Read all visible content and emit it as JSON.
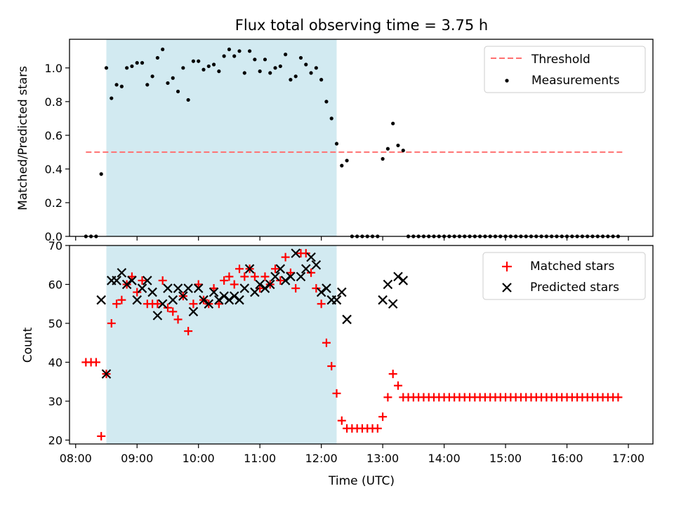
{
  "chart_data": [
    {
      "type": "scatter",
      "title": "Flux total observing time = 3.75 h",
      "xlabel": "",
      "ylabel": "Matched/Predicted stars",
      "xlim": [
        "07:54",
        "17:24"
      ],
      "ylim": [
        0,
        1.17
      ],
      "y_ticks": [
        "0.0",
        "0.2",
        "0.4",
        "0.6",
        "0.8",
        "1.0"
      ],
      "shaded_region": {
        "start": "08:30",
        "end": "12:15",
        "color": "#add8e6"
      },
      "legend_position": "top-right",
      "series": [
        {
          "name": "Threshold",
          "kind": "dashed-line",
          "color": "#ff7070",
          "x": [
            "08:10",
            "16:55"
          ],
          "values": [
            0.5,
            0.5
          ]
        },
        {
          "name": "Measurements",
          "kind": "dots",
          "color": "#000000",
          "x": [
            "08:10",
            "08:15",
            "08:20",
            "08:25",
            "08:30",
            "08:35",
            "08:40",
            "08:45",
            "08:50",
            "08:55",
            "09:00",
            "09:05",
            "09:10",
            "09:15",
            "09:20",
            "09:25",
            "09:30",
            "09:35",
            "09:40",
            "09:45",
            "09:50",
            "09:55",
            "10:00",
            "10:05",
            "10:10",
            "10:15",
            "10:20",
            "10:25",
            "10:30",
            "10:35",
            "10:40",
            "10:45",
            "10:50",
            "10:55",
            "11:00",
            "11:05",
            "11:10",
            "11:15",
            "11:20",
            "11:25",
            "11:30",
            "11:35",
            "11:40",
            "11:45",
            "11:50",
            "11:55",
            "12:00",
            "12:05",
            "12:10",
            "12:15",
            "12:20",
            "12:25",
            "12:30",
            "12:35",
            "12:40",
            "12:45",
            "12:50",
            "12:55",
            "13:00",
            "13:05",
            "13:10",
            "13:15",
            "13:20",
            "13:25",
            "13:30",
            "13:35",
            "13:40",
            "13:45",
            "13:50",
            "13:55",
            "14:00",
            "14:05",
            "14:10",
            "14:15",
            "14:20",
            "14:25",
            "14:30",
            "14:35",
            "14:40",
            "14:45",
            "14:50",
            "14:55",
            "15:00",
            "15:05",
            "15:10",
            "15:15",
            "15:20",
            "15:25",
            "15:30",
            "15:35",
            "15:40",
            "15:45",
            "15:50",
            "15:55",
            "16:00",
            "16:05",
            "16:10",
            "16:15",
            "16:20",
            "16:25",
            "16:30",
            "16:35",
            "16:40",
            "16:45",
            "16:50"
          ],
          "values": [
            0,
            0,
            0,
            0.37,
            1.0,
            0.82,
            0.9,
            0.89,
            1.0,
            1.01,
            1.03,
            1.03,
            0.9,
            0.95,
            1.06,
            1.11,
            0.91,
            0.94,
            0.86,
            1.0,
            0.81,
            1.04,
            1.04,
            0.99,
            1.01,
            1.02,
            0.98,
            1.07,
            1.11,
            1.07,
            1.1,
            0.97,
            1.1,
            1.05,
            0.98,
            1.05,
            0.97,
            1.0,
            1.01,
            1.08,
            0.93,
            0.95,
            1.06,
            1.02,
            0.97,
            1.0,
            0.93,
            0.8,
            0.7,
            0.55,
            0.42,
            0.45,
            0,
            0,
            0,
            0,
            0,
            0,
            0.46,
            0.52,
            0.67,
            0.54,
            0.51,
            0,
            0,
            0,
            0,
            0,
            0,
            0,
            0,
            0,
            0,
            0,
            0,
            0,
            0,
            0,
            0,
            0,
            0,
            0,
            0,
            0,
            0,
            0,
            0,
            0,
            0,
            0,
            0,
            0,
            0,
            0,
            0,
            0,
            0,
            0,
            0,
            0,
            0,
            0,
            0,
            0,
            0
          ]
        }
      ]
    },
    {
      "type": "scatter",
      "title": "",
      "xlabel": "Time (UTC)",
      "ylabel": "Count",
      "xlim": [
        "07:54",
        "17:24"
      ],
      "ylim": [
        19,
        70
      ],
      "y_ticks": [
        "20",
        "30",
        "40",
        "50",
        "60",
        "70"
      ],
      "x_ticks": [
        "08:00",
        "09:00",
        "10:00",
        "11:00",
        "12:00",
        "13:00",
        "14:00",
        "15:00",
        "16:00",
        "17:00"
      ],
      "shaded_region": {
        "start": "08:30",
        "end": "12:15",
        "color": "#add8e6"
      },
      "legend_position": "top-right",
      "series": [
        {
          "name": "Matched stars",
          "kind": "plus",
          "color": "#ff0000",
          "x": [
            "08:10",
            "08:15",
            "08:20",
            "08:25",
            "08:30",
            "08:35",
            "08:40",
            "08:45",
            "08:50",
            "08:55",
            "09:00",
            "09:05",
            "09:10",
            "09:15",
            "09:20",
            "09:25",
            "09:30",
            "09:35",
            "09:40",
            "09:45",
            "09:50",
            "09:55",
            "10:00",
            "10:05",
            "10:10",
            "10:15",
            "10:20",
            "10:25",
            "10:30",
            "10:35",
            "10:40",
            "10:45",
            "10:50",
            "10:55",
            "11:00",
            "11:05",
            "11:10",
            "11:15",
            "11:20",
            "11:25",
            "11:30",
            "11:35",
            "11:40",
            "11:45",
            "11:50",
            "11:55",
            "12:00",
            "12:05",
            "12:10",
            "12:15",
            "12:20",
            "12:25",
            "12:30",
            "12:35",
            "12:40",
            "12:45",
            "12:50",
            "12:55",
            "13:00",
            "13:05",
            "13:10",
            "13:15",
            "13:20",
            "13:25",
            "13:30",
            "13:35",
            "13:40",
            "13:45",
            "13:50",
            "13:55",
            "14:00",
            "14:05",
            "14:10",
            "14:15",
            "14:20",
            "14:25",
            "14:30",
            "14:35",
            "14:40",
            "14:45",
            "14:50",
            "14:55",
            "15:00",
            "15:05",
            "15:10",
            "15:15",
            "15:20",
            "15:25",
            "15:30",
            "15:35",
            "15:40",
            "15:45",
            "15:50",
            "15:55",
            "16:00",
            "16:05",
            "16:10",
            "16:15",
            "16:20",
            "16:25",
            "16:30",
            "16:35",
            "16:40",
            "16:45",
            "16:50"
          ],
          "values": [
            40,
            40,
            40,
            21,
            37,
            50,
            55,
            56,
            60,
            62,
            58,
            61,
            55,
            55,
            55,
            61,
            54,
            53,
            51,
            57,
            48,
            55,
            60,
            56,
            55,
            59,
            55,
            61,
            62,
            60,
            64,
            62,
            64,
            62,
            59,
            62,
            60,
            64,
            61,
            67,
            63,
            59,
            68,
            68,
            63,
            59,
            55,
            45,
            39,
            32,
            25,
            23,
            23,
            23,
            23,
            23,
            23,
            23,
            26,
            31,
            37,
            34,
            31,
            31,
            31,
            31,
            31,
            31,
            31,
            31,
            31,
            31,
            31,
            31,
            31,
            31,
            31,
            31,
            31,
            31,
            31,
            31,
            31,
            31,
            31,
            31,
            31,
            31,
            31,
            31,
            31,
            31,
            31,
            31,
            31,
            31,
            31,
            31,
            31,
            31,
            31,
            31,
            31,
            31,
            31
          ]
        },
        {
          "name": "Predicted stars",
          "kind": "cross",
          "color": "#000000",
          "x": [
            "08:25",
            "08:30",
            "08:35",
            "08:40",
            "08:45",
            "08:50",
            "08:55",
            "09:00",
            "09:05",
            "09:10",
            "09:15",
            "09:20",
            "09:25",
            "09:30",
            "09:35",
            "09:40",
            "09:45",
            "09:50",
            "09:55",
            "10:00",
            "10:05",
            "10:10",
            "10:15",
            "10:20",
            "10:25",
            "10:30",
            "10:35",
            "10:40",
            "10:45",
            "10:50",
            "10:55",
            "11:00",
            "11:05",
            "11:10",
            "11:15",
            "11:20",
            "11:25",
            "11:30",
            "11:35",
            "11:40",
            "11:45",
            "11:50",
            "11:55",
            "12:00",
            "12:05",
            "12:10",
            "12:15",
            "12:20",
            "12:25",
            "13:00",
            "13:05",
            "13:10",
            "13:15",
            "13:20"
          ],
          "values": [
            56,
            37,
            61,
            61,
            63,
            60,
            61,
            56,
            59,
            61,
            58,
            52,
            55,
            59,
            56,
            59,
            57,
            59,
            53,
            59,
            56,
            55,
            58,
            56,
            57,
            56,
            57,
            56,
            59,
            64,
            58,
            60,
            59,
            60,
            62,
            64,
            61,
            62,
            68,
            62,
            64,
            67,
            65,
            58,
            59,
            56,
            56,
            58,
            51,
            56,
            60,
            55,
            62,
            61
          ]
        }
      ]
    }
  ]
}
